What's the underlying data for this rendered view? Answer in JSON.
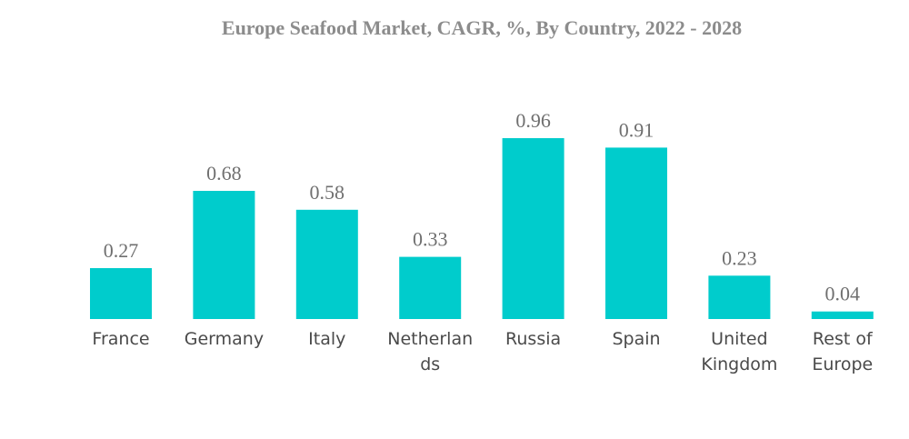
{
  "chart_data": {
    "type": "bar",
    "title": "Europe Seafood Market, CAGR, %, By Country, 2022 - 2028",
    "xlabel": "",
    "ylabel": "",
    "categories": [
      "France",
      "Germany",
      "Italy",
      "Netherlands",
      "Russia",
      "Spain",
      "United Kingdom",
      "Rest of Europe"
    ],
    "category_label_lines": [
      [
        "France"
      ],
      [
        "Germany"
      ],
      [
        "Italy"
      ],
      [
        "Netherlan",
        "ds"
      ],
      [
        "Russia"
      ],
      [
        "Spain"
      ],
      [
        "United",
        "Kingdom"
      ],
      [
        "Rest of",
        "Europe"
      ]
    ],
    "values": [
      0.27,
      0.68,
      0.58,
      0.33,
      0.96,
      0.91,
      0.23,
      0.04
    ],
    "value_labels": [
      "0.27",
      "0.68",
      "0.58",
      "0.33",
      "0.96",
      "0.91",
      "0.23",
      "0.04"
    ],
    "ylim": [
      0,
      0.96
    ],
    "grid": false,
    "legend": "none",
    "bar_color": "#00cccc"
  }
}
